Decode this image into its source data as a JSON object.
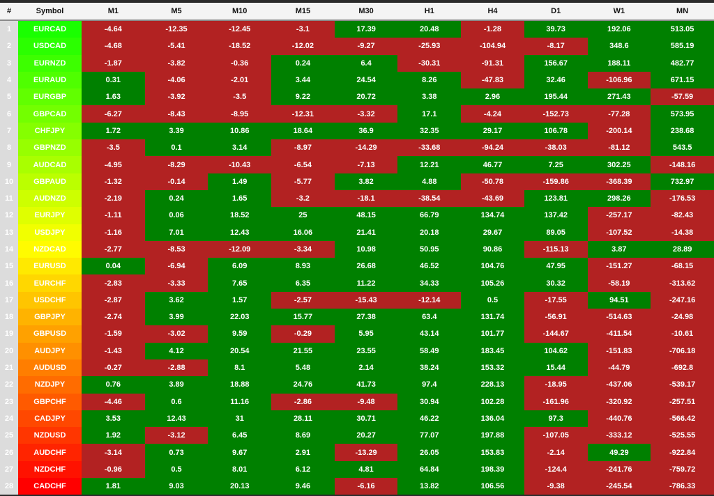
{
  "colors": {
    "positive": "#008000",
    "negative": "#b22222",
    "index_bg": "#dcdcdc",
    "header_bg": "#f4f4f4",
    "symbol_gradient_start": "#1aff00",
    "symbol_gradient_mid": "#ffe600",
    "symbol_gradient_end": "#ff0000"
  },
  "table": {
    "headers": [
      "#",
      "Symbol",
      "M1",
      "M5",
      "M10",
      "M15",
      "M30",
      "H1",
      "H4",
      "D1",
      "W1",
      "MN"
    ],
    "rows": [
      {
        "n": "1",
        "symbol": "EURCAD",
        "values": [
          "-4.64",
          "-12.35",
          "-12.45",
          "-3.1",
          "17.39",
          "20.48",
          "-1.28",
          "39.73",
          "192.06",
          "513.05"
        ]
      },
      {
        "n": "2",
        "symbol": "USDCAD",
        "values": [
          "-4.68",
          "-5.41",
          "-18.52",
          "-12.02",
          "-9.27",
          "-25.93",
          "-104.94",
          "-8.17",
          "348.6",
          "585.19"
        ]
      },
      {
        "n": "3",
        "symbol": "EURNZD",
        "values": [
          "-1.87",
          "-3.82",
          "-0.36",
          "0.24",
          "6.4",
          "-30.31",
          "-91.31",
          "156.67",
          "188.11",
          "482.77"
        ]
      },
      {
        "n": "4",
        "symbol": "EURAUD",
        "values": [
          "0.31",
          "-4.06",
          "-2.01",
          "3.44",
          "24.54",
          "8.26",
          "-47.83",
          "32.46",
          "-106.96",
          "671.15"
        ]
      },
      {
        "n": "5",
        "symbol": "EURGBP",
        "values": [
          "1.63",
          "-3.92",
          "-3.5",
          "9.22",
          "20.72",
          "3.38",
          "2.96",
          "195.44",
          "271.43",
          "-57.59"
        ]
      },
      {
        "n": "6",
        "symbol": "GBPCAD",
        "values": [
          "-6.27",
          "-8.43",
          "-8.95",
          "-12.31",
          "-3.32",
          "17.1",
          "-4.24",
          "-152.73",
          "-77.28",
          "573.95"
        ]
      },
      {
        "n": "7",
        "symbol": "CHFJPY",
        "values": [
          "1.72",
          "3.39",
          "10.86",
          "18.64",
          "36.9",
          "32.35",
          "29.17",
          "106.78",
          "-200.14",
          "238.68"
        ]
      },
      {
        "n": "8",
        "symbol": "GBPNZD",
        "values": [
          "-3.5",
          "0.1",
          "3.14",
          "-8.97",
          "-14.29",
          "-33.68",
          "-94.24",
          "-38.03",
          "-81.12",
          "543.5"
        ]
      },
      {
        "n": "9",
        "symbol": "AUDCAD",
        "values": [
          "-4.95",
          "-8.29",
          "-10.43",
          "-6.54",
          "-7.13",
          "12.21",
          "46.77",
          "7.25",
          "302.25",
          "-148.16"
        ]
      },
      {
        "n": "10",
        "symbol": "GBPAUD",
        "values": [
          "-1.32",
          "-0.14",
          "1.49",
          "-5.77",
          "3.82",
          "4.88",
          "-50.78",
          "-159.86",
          "-368.39",
          "732.97"
        ]
      },
      {
        "n": "11",
        "symbol": "AUDNZD",
        "values": [
          "-2.19",
          "0.24",
          "1.65",
          "-3.2",
          "-18.1",
          "-38.54",
          "-43.69",
          "123.81",
          "298.26",
          "-176.53"
        ]
      },
      {
        "n": "12",
        "symbol": "EURJPY",
        "values": [
          "-1.11",
          "0.06",
          "18.52",
          "25",
          "48.15",
          "66.79",
          "134.74",
          "137.42",
          "-257.17",
          "-82.43"
        ]
      },
      {
        "n": "13",
        "symbol": "USDJPY",
        "values": [
          "-1.16",
          "7.01",
          "12.43",
          "16.06",
          "21.41",
          "20.18",
          "29.67",
          "89.05",
          "-107.52",
          "-14.38"
        ]
      },
      {
        "n": "14",
        "symbol": "NZDCAD",
        "values": [
          "-2.77",
          "-8.53",
          "-12.09",
          "-3.34",
          "10.98",
          "50.95",
          "90.86",
          "-115.13",
          "3.87",
          "28.89"
        ]
      },
      {
        "n": "15",
        "symbol": "EURUSD",
        "values": [
          "0.04",
          "-6.94",
          "6.09",
          "8.93",
          "26.68",
          "46.52",
          "104.76",
          "47.95",
          "-151.27",
          "-68.15"
        ]
      },
      {
        "n": "16",
        "symbol": "EURCHF",
        "values": [
          "-2.83",
          "-3.33",
          "7.65",
          "6.35",
          "11.22",
          "34.33",
          "105.26",
          "30.32",
          "-58.19",
          "-313.62"
        ]
      },
      {
        "n": "17",
        "symbol": "USDCHF",
        "values": [
          "-2.87",
          "3.62",
          "1.57",
          "-2.57",
          "-15.43",
          "-12.14",
          "0.5",
          "-17.55",
          "94.51",
          "-247.16"
        ]
      },
      {
        "n": "18",
        "symbol": "GBPJPY",
        "values": [
          "-2.74",
          "3.99",
          "22.03",
          "15.77",
          "27.38",
          "63.4",
          "131.74",
          "-56.91",
          "-514.63",
          "-24.98"
        ]
      },
      {
        "n": "19",
        "symbol": "GBPUSD",
        "values": [
          "-1.59",
          "-3.02",
          "9.59",
          "-0.29",
          "5.95",
          "43.14",
          "101.77",
          "-144.67",
          "-411.54",
          "-10.61"
        ]
      },
      {
        "n": "20",
        "symbol": "AUDJPY",
        "values": [
          "-1.43",
          "4.12",
          "20.54",
          "21.55",
          "23.55",
          "58.49",
          "183.45",
          "104.62",
          "-151.83",
          "-706.18"
        ]
      },
      {
        "n": "21",
        "symbol": "AUDUSD",
        "values": [
          "-0.27",
          "-2.88",
          "8.1",
          "5.48",
          "2.14",
          "38.24",
          "153.32",
          "15.44",
          "-44.79",
          "-692.8"
        ]
      },
      {
        "n": "22",
        "symbol": "NZDJPY",
        "values": [
          "0.76",
          "3.89",
          "18.88",
          "24.76",
          "41.73",
          "97.4",
          "228.13",
          "-18.95",
          "-437.06",
          "-539.17"
        ]
      },
      {
        "n": "23",
        "symbol": "GBPCHF",
        "values": [
          "-4.46",
          "0.6",
          "11.16",
          "-2.86",
          "-9.48",
          "30.94",
          "102.28",
          "-161.96",
          "-320.92",
          "-257.51"
        ]
      },
      {
        "n": "24",
        "symbol": "CADJPY",
        "values": [
          "3.53",
          "12.43",
          "31",
          "28.11",
          "30.71",
          "46.22",
          "136.04",
          "97.3",
          "-440.76",
          "-566.42"
        ]
      },
      {
        "n": "25",
        "symbol": "NZDUSD",
        "values": [
          "1.92",
          "-3.12",
          "6.45",
          "8.69",
          "20.27",
          "77.07",
          "197.88",
          "-107.05",
          "-333.12",
          "-525.55"
        ]
      },
      {
        "n": "26",
        "symbol": "AUDCHF",
        "values": [
          "-3.14",
          "0.73",
          "9.67",
          "2.91",
          "-13.29",
          "26.05",
          "153.83",
          "-2.14",
          "49.29",
          "-922.84"
        ]
      },
      {
        "n": "27",
        "symbol": "NZDCHF",
        "values": [
          "-0.96",
          "0.5",
          "8.01",
          "6.12",
          "4.81",
          "64.84",
          "198.39",
          "-124.4",
          "-241.76",
          "-759.72"
        ]
      },
      {
        "n": "28",
        "symbol": "CADCHF",
        "values": [
          "1.81",
          "9.03",
          "20.13",
          "9.46",
          "-6.16",
          "13.82",
          "106.56",
          "-9.38",
          "-245.54",
          "-786.33"
        ]
      }
    ]
  }
}
